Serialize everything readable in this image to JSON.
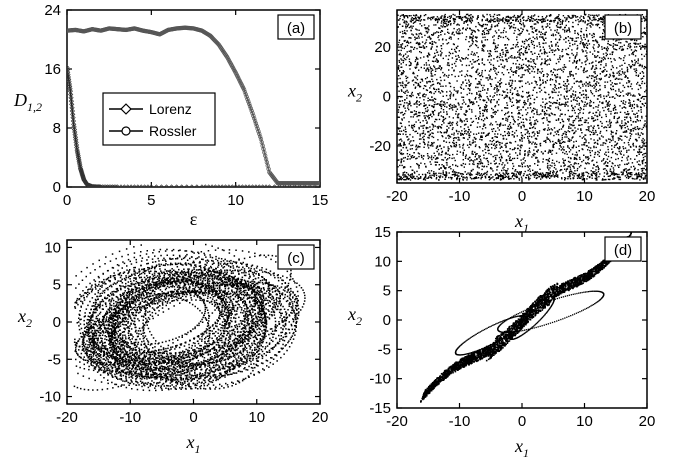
{
  "chart_data": [
    {
      "panel": "(a)",
      "type": "line",
      "xlabel": "ε",
      "ylabel_main": "D",
      "ylabel_sub": "1,2",
      "xlim": [
        0,
        15
      ],
      "ylim": [
        0,
        24
      ],
      "xticks": [
        0,
        5,
        10,
        15
      ],
      "yticks": [
        0,
        8,
        16,
        24
      ],
      "legend_placement": "left-middle",
      "series": [
        {
          "name": "Lorenz",
          "marker": "diamond",
          "x": [
            0,
            0.2,
            0.4,
            0.6,
            0.8,
            1.0,
            1.2,
            1.5,
            2.0,
            3,
            5,
            8,
            10,
            12,
            15
          ],
          "y": [
            16.2,
            13,
            8.5,
            5,
            2.5,
            1.0,
            0.3,
            0.05,
            0,
            0,
            0,
            0,
            0,
            0,
            0
          ]
        },
        {
          "name": "Rossler",
          "marker": "circle",
          "x": [
            0,
            0.5,
            1,
            1.5,
            2,
            2.5,
            3,
            3.5,
            4,
            4.5,
            5,
            5.5,
            6,
            6.5,
            7,
            7.5,
            8,
            8.5,
            9,
            9.5,
            10,
            10.5,
            11,
            11.5,
            12,
            12.5,
            13,
            13.5,
            14,
            14.5,
            15
          ],
          "y": [
            21.2,
            21.3,
            21.1,
            21.4,
            21.2,
            21.5,
            21.4,
            21.3,
            21.5,
            21.2,
            21.0,
            20.7,
            21.3,
            21.5,
            21.6,
            21.5,
            21.2,
            20.5,
            19.3,
            17.6,
            15.5,
            13.2,
            10.0,
            6.5,
            2.0,
            0.5,
            0.5,
            0.5,
            0.5,
            0.5,
            0.5
          ]
        }
      ]
    },
    {
      "panel": "(b)",
      "type": "scatter",
      "xlabel_main": "x",
      "xlabel_sub": "1",
      "ylabel_main": "x",
      "ylabel_sub": "2",
      "xlim": [
        -20,
        20
      ],
      "ylim": [
        -35,
        35
      ],
      "xticks": [
        -20,
        -10,
        0,
        10,
        20
      ],
      "yticks": [
        -20,
        0,
        20
      ],
      "description_values": {
        "x_range": [
          -20,
          20
        ],
        "y_range": [
          -33,
          33
        ]
      }
    },
    {
      "panel": "(c)",
      "type": "scatter",
      "xlabel_main": "x",
      "xlabel_sub": "1",
      "ylabel_main": "x",
      "ylabel_sub": "2",
      "xlim": [
        -20,
        20
      ],
      "ylim": [
        -11,
        11
      ],
      "xticks": [
        -20,
        -10,
        0,
        10,
        20
      ],
      "yticks": [
        -10,
        -5,
        0,
        5,
        10
      ]
    },
    {
      "panel": "(d)",
      "type": "scatter",
      "xlabel_main": "x",
      "xlabel_sub": "1",
      "ylabel_main": "x",
      "ylabel_sub": "2",
      "xlim": [
        -20,
        20
      ],
      "ylim": [
        -15,
        15
      ],
      "xticks": [
        -20,
        -10,
        0,
        10,
        20
      ],
      "yticks": [
        -15,
        -10,
        -5,
        0,
        5,
        10,
        15
      ]
    }
  ]
}
